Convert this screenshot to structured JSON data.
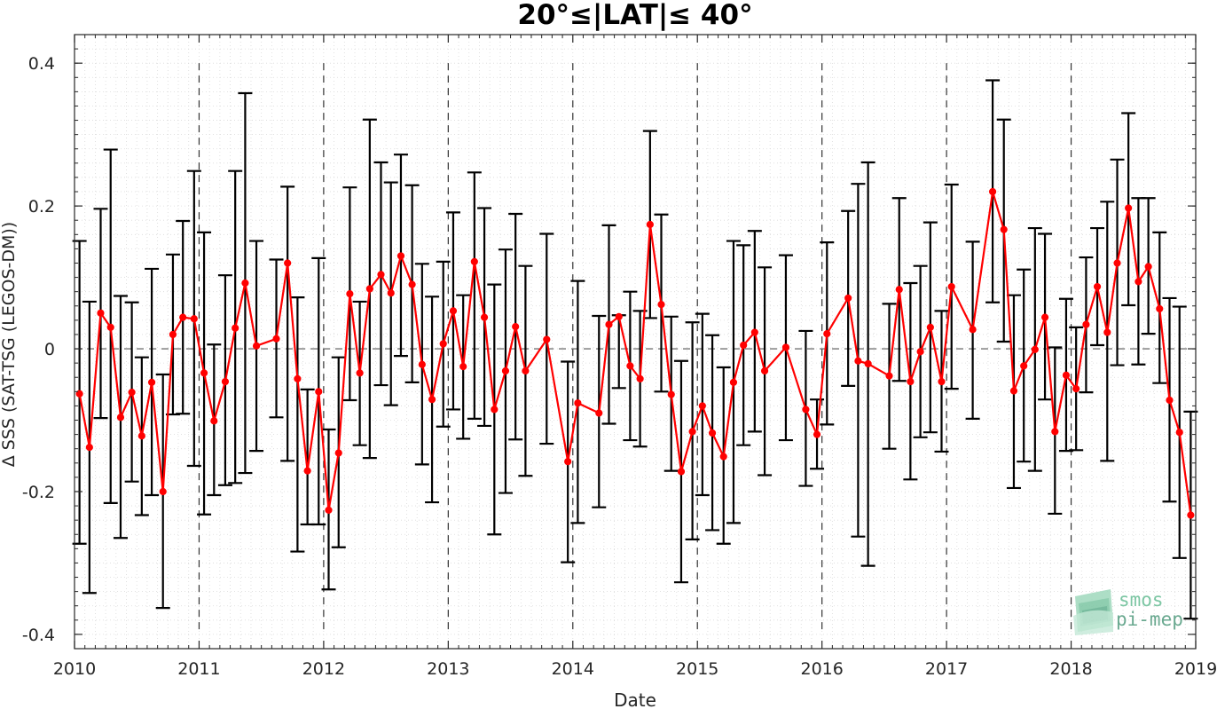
{
  "colors": {
    "series": "#ff0000",
    "errorbar": "#000000",
    "grid": "#d9d9d9",
    "logo": "#5fae8c"
  },
  "logo": {
    "line1": "smos",
    "line2": "pi-mep"
  },
  "chart_data": {
    "type": "line",
    "title": "20°≤|LAT|≤ 40°",
    "xlabel": "Date",
    "ylabel": "Δ SSS (SAT-TSG (LEGOS-DM))",
    "xlim": [
      2010.0,
      2019.0
    ],
    "ylim": [
      -0.42,
      0.44
    ],
    "xticks": [
      2010,
      2011,
      2012,
      2013,
      2014,
      2015,
      2016,
      2017,
      2018,
      2019
    ],
    "xtick_labels": [
      "2010",
      "2011",
      "2012",
      "2013",
      "2014",
      "2015",
      "2016",
      "2017",
      "2018",
      "2019"
    ],
    "yticks": [
      -0.4,
      -0.2,
      0,
      0.2,
      0.4
    ],
    "ytick_labels": [
      "-0.4",
      "-0.2",
      "0",
      "0.2",
      "0.4"
    ],
    "grid": true,
    "year_separators": [
      2011,
      2012,
      2013,
      2014,
      2015,
      2016,
      2017,
      2018
    ],
    "zero_line": 0,
    "series": [
      {
        "x": [
          2010.04,
          2010.12,
          2010.21,
          2010.29,
          2010.37,
          2010.46,
          2010.54,
          2010.62,
          2010.71,
          2010.79,
          2010.87,
          2010.96,
          2011.04,
          2011.12,
          2011.21,
          2011.29,
          2011.37,
          2011.46,
          2011.62,
          2011.71,
          2011.79,
          2011.87,
          2011.96,
          2012.04,
          2012.12,
          2012.21,
          2012.29,
          2012.37,
          2012.46,
          2012.54,
          2012.62,
          2012.71,
          2012.79,
          2012.87,
          2012.96,
          2013.04,
          2013.12,
          2013.21,
          2013.29,
          2013.37,
          2013.46,
          2013.54,
          2013.62,
          2013.79,
          2013.96,
          2014.04,
          2014.21,
          2014.29,
          2014.37,
          2014.46,
          2014.54,
          2014.62,
          2014.71,
          2014.79,
          2014.87,
          2014.96,
          2015.04,
          2015.12,
          2015.21,
          2015.29,
          2015.37,
          2015.46,
          2015.54,
          2015.71,
          2015.87,
          2015.96,
          2016.04,
          2016.21,
          2016.29,
          2016.37,
          2016.54,
          2016.62,
          2016.71,
          2016.79,
          2016.87,
          2016.96,
          2017.04,
          2017.21,
          2017.37,
          2017.46,
          2017.54,
          2017.62,
          2017.71,
          2017.79,
          2017.87,
          2017.96,
          2018.04,
          2018.12,
          2018.21,
          2018.29,
          2018.37,
          2018.46,
          2018.54,
          2018.62,
          2018.71,
          2018.79,
          2018.87,
          2018.96
        ],
        "values": [
          -0.063,
          -0.138,
          0.05,
          0.03,
          -0.096,
          -0.061,
          -0.122,
          -0.047,
          -0.2,
          0.02,
          0.044,
          0.042,
          -0.034,
          -0.101,
          -0.046,
          0.029,
          0.092,
          0.004,
          0.014,
          0.12,
          -0.042,
          -0.171,
          -0.06,
          -0.226,
          -0.146,
          0.077,
          -0.034,
          0.084,
          0.104,
          0.078,
          0.13,
          0.09,
          -0.022,
          -0.071,
          0.007,
          0.053,
          -0.025,
          0.122,
          0.044,
          -0.085,
          -0.031,
          0.031,
          -0.031,
          0.013,
          -0.158,
          -0.076,
          -0.09,
          0.034,
          0.045,
          -0.024,
          -0.042,
          0.174,
          0.062,
          -0.064,
          -0.172,
          -0.116,
          -0.08,
          -0.118,
          -0.151,
          -0.047,
          0.005,
          0.023,
          -0.031,
          0.002,
          -0.085,
          -0.12,
          0.021,
          0.071,
          -0.017,
          -0.021,
          -0.038,
          0.083,
          -0.046,
          -0.004,
          0.03,
          -0.046,
          0.087,
          0.027,
          0.22,
          0.167,
          -0.059,
          -0.024,
          -0.001,
          0.044,
          -0.116,
          -0.037,
          -0.056,
          0.034,
          0.087,
          0.023,
          0.12,
          0.197,
          0.094,
          0.115,
          0.056,
          -0.072,
          -0.117,
          -0.233
        ],
        "err_low": [
          -0.273,
          -0.342,
          -0.097,
          -0.216,
          -0.265,
          -0.186,
          -0.233,
          -0.205,
          -0.363,
          -0.092,
          -0.091,
          -0.164,
          -0.232,
          -0.205,
          -0.191,
          -0.188,
          -0.174,
          -0.143,
          -0.096,
          -0.157,
          -0.284,
          -0.246,
          -0.246,
          -0.337,
          -0.278,
          -0.072,
          -0.135,
          -0.153,
          -0.051,
          -0.079,
          -0.01,
          -0.047,
          -0.162,
          -0.215,
          -0.109,
          -0.085,
          -0.126,
          -0.098,
          -0.108,
          -0.26,
          -0.202,
          -0.127,
          -0.178,
          -0.133,
          -0.299,
          -0.244,
          -0.222,
          -0.105,
          -0.055,
          -0.128,
          -0.137,
          0.043,
          -0.06,
          -0.171,
          -0.327,
          -0.267,
          -0.205,
          -0.254,
          -0.273,
          -0.244,
          -0.135,
          -0.116,
          -0.177,
          -0.128,
          -0.192,
          -0.168,
          -0.106,
          -0.052,
          -0.263,
          -0.304,
          -0.14,
          -0.045,
          -0.183,
          -0.124,
          -0.117,
          -0.144,
          -0.056,
          -0.098,
          0.065,
          0.01,
          -0.195,
          -0.158,
          -0.171,
          -0.071,
          -0.231,
          -0.143,
          -0.142,
          -0.061,
          0.005,
          -0.157,
          -0.023,
          0.061,
          -0.022,
          0.021,
          -0.048,
          -0.214,
          -0.293,
          -0.378
        ],
        "err_high": [
          0.151,
          0.066,
          0.196,
          0.279,
          0.074,
          0.065,
          -0.012,
          0.112,
          -0.036,
          0.132,
          0.179,
          0.249,
          0.163,
          0.006,
          0.103,
          0.249,
          0.358,
          0.151,
          0.125,
          0.227,
          0.072,
          -0.057,
          0.127,
          -0.113,
          -0.012,
          0.226,
          0.066,
          0.321,
          0.261,
          0.233,
          0.272,
          0.229,
          0.119,
          0.073,
          0.122,
          0.191,
          0.075,
          0.247,
          0.197,
          0.09,
          0.139,
          0.189,
          0.116,
          0.161,
          -0.018,
          0.095,
          0.046,
          0.173,
          0.047,
          0.08,
          0.053,
          0.305,
          0.188,
          0.045,
          -0.017,
          0.037,
          0.049,
          0.019,
          -0.026,
          0.151,
          0.145,
          0.165,
          0.114,
          0.131,
          0.025,
          -0.071,
          0.149,
          0.193,
          0.231,
          0.261,
          0.063,
          0.211,
          0.092,
          0.116,
          0.177,
          0.053,
          0.23,
          0.15,
          0.376,
          0.321,
          0.075,
          0.111,
          0.169,
          0.161,
          0.002,
          0.07,
          0.03,
          0.128,
          0.169,
          0.206,
          0.265,
          0.33,
          0.211,
          0.211,
          0.163,
          0.071,
          0.059,
          -0.088
        ]
      }
    ]
  }
}
